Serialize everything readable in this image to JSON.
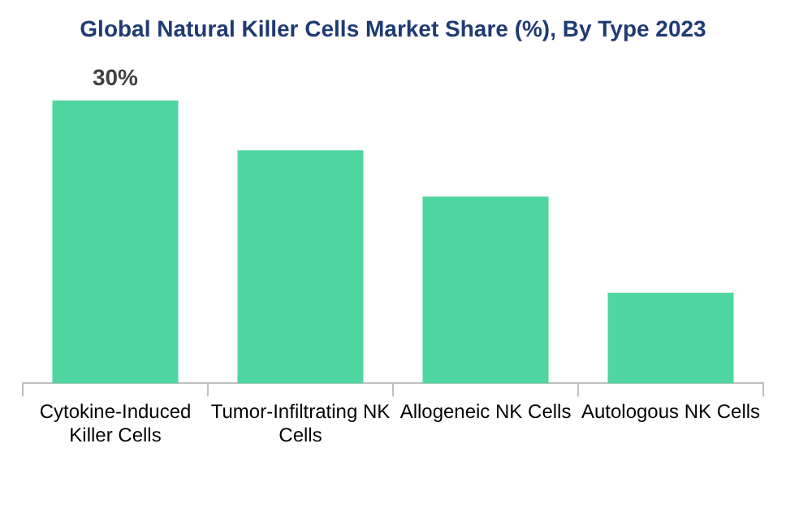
{
  "chart_data": {
    "type": "bar",
    "title": "Global Natural Killer Cells Market Share (%), By Type 2023",
    "categories": [
      "Cytokine-Induced Killer Cells",
      "Tumor-Infiltrating NK Cells",
      "Allogeneic NK Cells",
      "Autologous NK Cells"
    ],
    "values": [
      30,
      24.7,
      19.8,
      9.6
    ],
    "value_labels": [
      "30%",
      null,
      null,
      null
    ],
    "color": "#4fd6a0",
    "tick_labels": "x",
    "grid": false,
    "legend": false
  }
}
